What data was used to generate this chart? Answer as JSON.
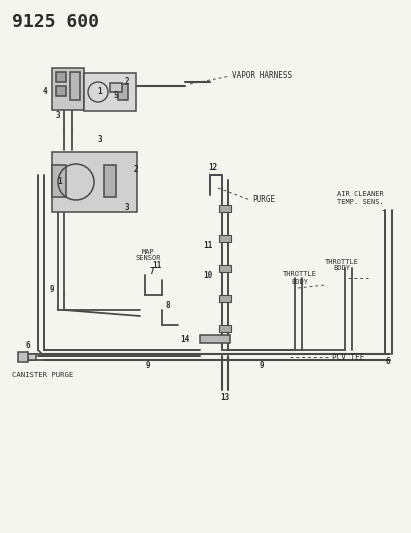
{
  "title": "9125 600",
  "bg_color": "#f5f5f0",
  "line_color": "#4a4a4a",
  "text_color": "#2a2a2a",
  "labels": {
    "vapor_harness": "VAPOR HARNESS",
    "map_sensor": "MAP\nSENSOR",
    "purge": "PURGE",
    "air_cleaner": "AIR CLEANER\nTEMP. SENS.",
    "throttle_body1": "THROTTLE\nBODY",
    "throttle_body2": "THROTTLE\nBODY",
    "pcv_tee": "PCV TEE",
    "canister_purge": "CANISTER PURGE"
  }
}
